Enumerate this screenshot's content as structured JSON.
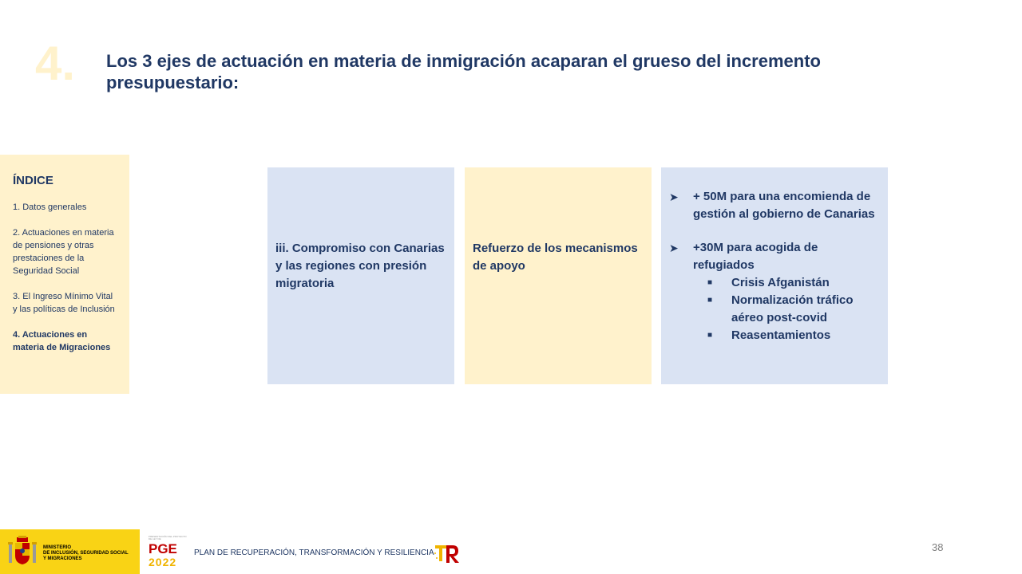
{
  "slide": {
    "section_number": "4.",
    "title": "Los 3 ejes de actuación en materia de inmigración acaparan el grueso del incremento presupuestario:"
  },
  "index": {
    "title": "ÍNDICE",
    "items": [
      {
        "label": "1. Datos generales"
      },
      {
        "label": "2. Actuaciones en materia de pensiones y otras prestaciones de la Seguridad Social"
      },
      {
        "label": "3. El Ingreso Mínimo Vital y las políticas de Inclusión"
      },
      {
        "label": "4. Actuaciones en materia de Migraciones"
      }
    ]
  },
  "cards": {
    "card1": "iii. Compromiso con Canarias y las regiones con presión migratoria",
    "card2": "Refuerzo de los mecanismos de apoyo",
    "card3": {
      "bullet1": "+ 50M para una encomienda de gestión al gobierno de Canarias",
      "bullet2": "+30M para acogida de refugiados",
      "sub_bullets": [
        "Crisis Afganistán",
        "Normalización tráfico aéreo post-covid",
        "Reasentamientos"
      ]
    }
  },
  "footer": {
    "ministry": [
      "MINISTERIO",
      "DE INCLUSIÓN, SEGURIDAD SOCIAL",
      "Y MIGRACIONES"
    ],
    "pge_small": "PRESENTACIÓN DEL PROYECTO DE LEY DE",
    "pge_label": "PGE",
    "pge_year": "2022",
    "plan": "PLAN DE RECUPERACIÓN, TRANSFORMACIÓN Y RESILIENCIA",
    "page_number": "38"
  },
  "colors": {
    "title": "#203864",
    "yellow_panel": "#fff2cc",
    "blue_panel": "#dae3f3",
    "gov_yellow": "#f9d315"
  }
}
